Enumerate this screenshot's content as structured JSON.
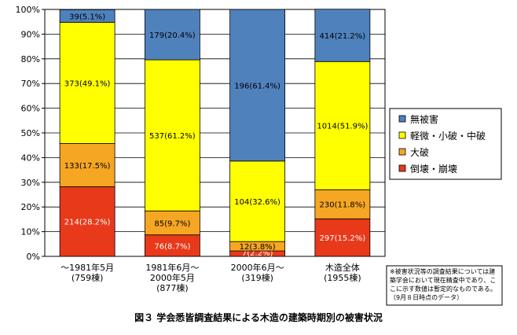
{
  "chart_data": {
    "type": "bar",
    "stacked": true,
    "percent": true,
    "title": "図３ 学会悉皆調査結果による木造の建築時期別の被害状況",
    "ylim": [
      0,
      100
    ],
    "yticks": [
      "0%",
      "10%",
      "20%",
      "30%",
      "40%",
      "50%",
      "60%",
      "70%",
      "80%",
      "90%",
      "100%"
    ],
    "categories": [
      [
        "～1981年5月",
        "(759棟)"
      ],
      [
        "1981年6月～",
        "2000年5月",
        "(877棟)"
      ],
      [
        "2000年6月～",
        "(319棟)"
      ],
      [
        "木造全体",
        "(1955棟)"
      ]
    ],
    "series": [
      {
        "name": "倒壊・崩壊",
        "color": "#e8391b",
        "textColor": "#ffffff",
        "values": [
          28.2,
          8.7,
          2.2,
          15.2
        ],
        "labels": [
          "214(28.2%)",
          "76(8.7%)",
          "7(2.2%)",
          "297(15.2%)"
        ]
      },
      {
        "name": "大破",
        "color": "#f5a623",
        "textColor": "#000000",
        "values": [
          17.5,
          9.7,
          3.8,
          11.8
        ],
        "labels": [
          "133(17.5%)",
          "85(9.7%)",
          "12(3.8%)",
          "230(11.8%)"
        ]
      },
      {
        "name": "軽微・小破・中破",
        "color": "#ffff00",
        "textColor": "#000000",
        "values": [
          49.1,
          61.2,
          32.6,
          51.9
        ],
        "labels": [
          "373(49.1%)",
          "537(61.2%)",
          "104(32.6%)",
          "1014(51.9%)"
        ]
      },
      {
        "name": "無被害",
        "color": "#4f81bd",
        "textColor": "#000000",
        "values": [
          5.1,
          20.4,
          61.4,
          21.2
        ],
        "labels": [
          "39(5.1%)",
          "179(20.4%)",
          "196(61.4%)",
          "414(21.2%)"
        ]
      }
    ],
    "legend": {
      "placement": "right",
      "entries": [
        "無被害",
        "軽微・小破・中破",
        "大破",
        "倒壊・崩壊"
      ]
    },
    "note": [
      "※被害状況等の調査結果については建",
      "築学会において現在精査中であり、こ",
      "こに示す数値は暫定的なものである。",
      "（9月８日時点のデータ）"
    ]
  }
}
